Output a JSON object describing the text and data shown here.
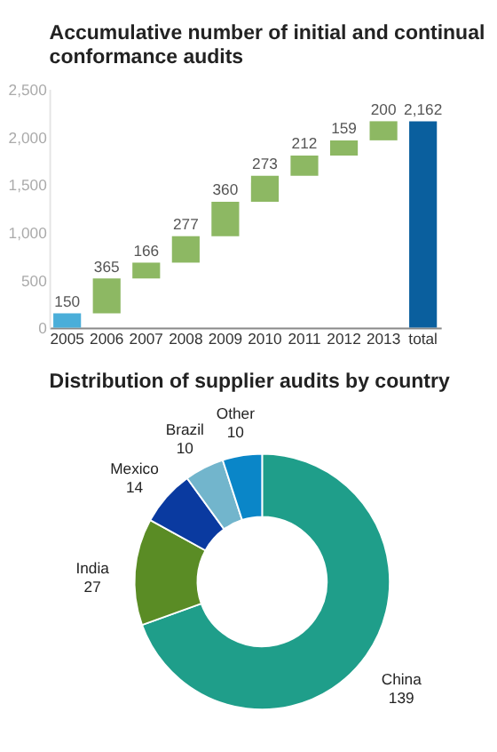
{
  "chart_data": [
    {
      "type": "bar",
      "title": "Accumulative number of initial and continual conformance audits",
      "categories": [
        "2005",
        "2006",
        "2007",
        "2008",
        "2009",
        "2010",
        "2011",
        "2012",
        "2013",
        "total"
      ],
      "values": [
        150,
        365,
        166,
        277,
        360,
        273,
        212,
        159,
        200,
        2162
      ],
      "base": [
        0,
        150,
        515,
        681,
        958,
        1318,
        1591,
        1803,
        1962,
        0
      ],
      "colors": [
        "#4aaed9",
        "#8db863",
        "#8db863",
        "#8db863",
        "#8db863",
        "#8db863",
        "#8db863",
        "#8db863",
        "#8db863",
        "#0a5f9e"
      ],
      "value_labels": [
        "150",
        "365",
        "166",
        "277",
        "360",
        "273",
        "212",
        "159",
        "200",
        "2,162"
      ],
      "ylim": [
        0,
        2500
      ],
      "yticks": [
        0,
        {
          "value": 500,
          "label": "500"
        },
        {
          "value": 1000,
          "label": "1,000"
        },
        {
          "value": 1500,
          "label": "1,500"
        },
        {
          "value": 2000,
          "label": "2,000"
        },
        {
          "value": 2500,
          "label": "2,500"
        }
      ],
      "grid": false
    },
    {
      "type": "donut",
      "title": "Distribution of supplier audits by country",
      "categories": [
        "China",
        "India",
        "Mexico",
        "Brazil",
        "Other"
      ],
      "values": [
        139,
        27,
        14,
        10,
        10
      ],
      "colors": [
        "#1f9e8a",
        "#5a8c25",
        "#0a3aa0",
        "#72b5cc",
        "#0a86c8"
      ],
      "data_labels": true
    }
  ]
}
